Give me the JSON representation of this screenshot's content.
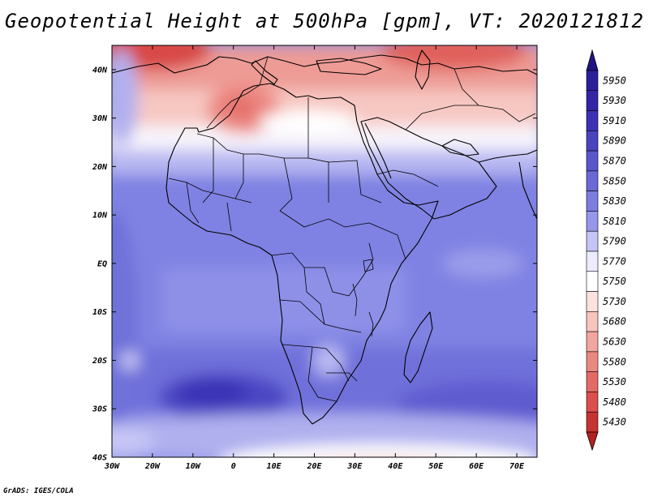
{
  "title": "Geopotential Height at 500hPa [gpm], VT: 2020121812",
  "footer": "GrADS: IGES/COLA",
  "map": {
    "lon_range": [
      -30,
      75
    ],
    "lat_range": [
      -40,
      45
    ],
    "lat_ticks": [
      {
        "value": 40,
        "label": "40N"
      },
      {
        "value": 30,
        "label": "30N"
      },
      {
        "value": 20,
        "label": "20N"
      },
      {
        "value": 10,
        "label": "10N"
      },
      {
        "value": 0,
        "label": "EQ"
      },
      {
        "value": -10,
        "label": "10S"
      },
      {
        "value": -20,
        "label": "20S"
      },
      {
        "value": -30,
        "label": "30S"
      },
      {
        "value": -40,
        "label": "40S"
      }
    ],
    "lon_ticks": [
      {
        "value": -30,
        "label": "30W"
      },
      {
        "value": -20,
        "label": "20W"
      },
      {
        "value": -10,
        "label": "10W"
      },
      {
        "value": 0,
        "label": "0"
      },
      {
        "value": 10,
        "label": "10E"
      },
      {
        "value": 20,
        "label": "20E"
      },
      {
        "value": 30,
        "label": "30E"
      },
      {
        "value": 40,
        "label": "40E"
      },
      {
        "value": 50,
        "label": "50E"
      },
      {
        "value": 60,
        "label": "60E"
      },
      {
        "value": 70,
        "label": "70E"
      }
    ]
  },
  "colorbar": {
    "levels": [
      {
        "label": "5950",
        "color": "#2b1f9c"
      },
      {
        "label": "5930",
        "color": "#3425a8"
      },
      {
        "label": "5910",
        "color": "#3d31b5"
      },
      {
        "label": "5890",
        "color": "#4a43c0"
      },
      {
        "label": "5870",
        "color": "#5a57cc"
      },
      {
        "label": "5850",
        "color": "#6a6ad6"
      },
      {
        "label": "5830",
        "color": "#7b7de0"
      },
      {
        "label": "5810",
        "color": "#9696ea"
      },
      {
        "label": "5790",
        "color": "#c5c5f5"
      },
      {
        "label": "5770",
        "color": "#ececfc"
      },
      {
        "label": "5750",
        "color": "#ffffff"
      },
      {
        "label": "5730",
        "color": "#fde2de"
      },
      {
        "label": "5680",
        "color": "#f8c4be"
      },
      {
        "label": "5630",
        "color": "#f2a6a0"
      },
      {
        "label": "5580",
        "color": "#ec8882"
      },
      {
        "label": "5530",
        "color": "#e46a66"
      },
      {
        "label": "5480",
        "color": "#dc4f4c"
      },
      {
        "label": "5430",
        "color": "#c73232"
      }
    ],
    "top_arrow_color": "#211582",
    "bottom_arrow_color": "#b32222"
  }
}
